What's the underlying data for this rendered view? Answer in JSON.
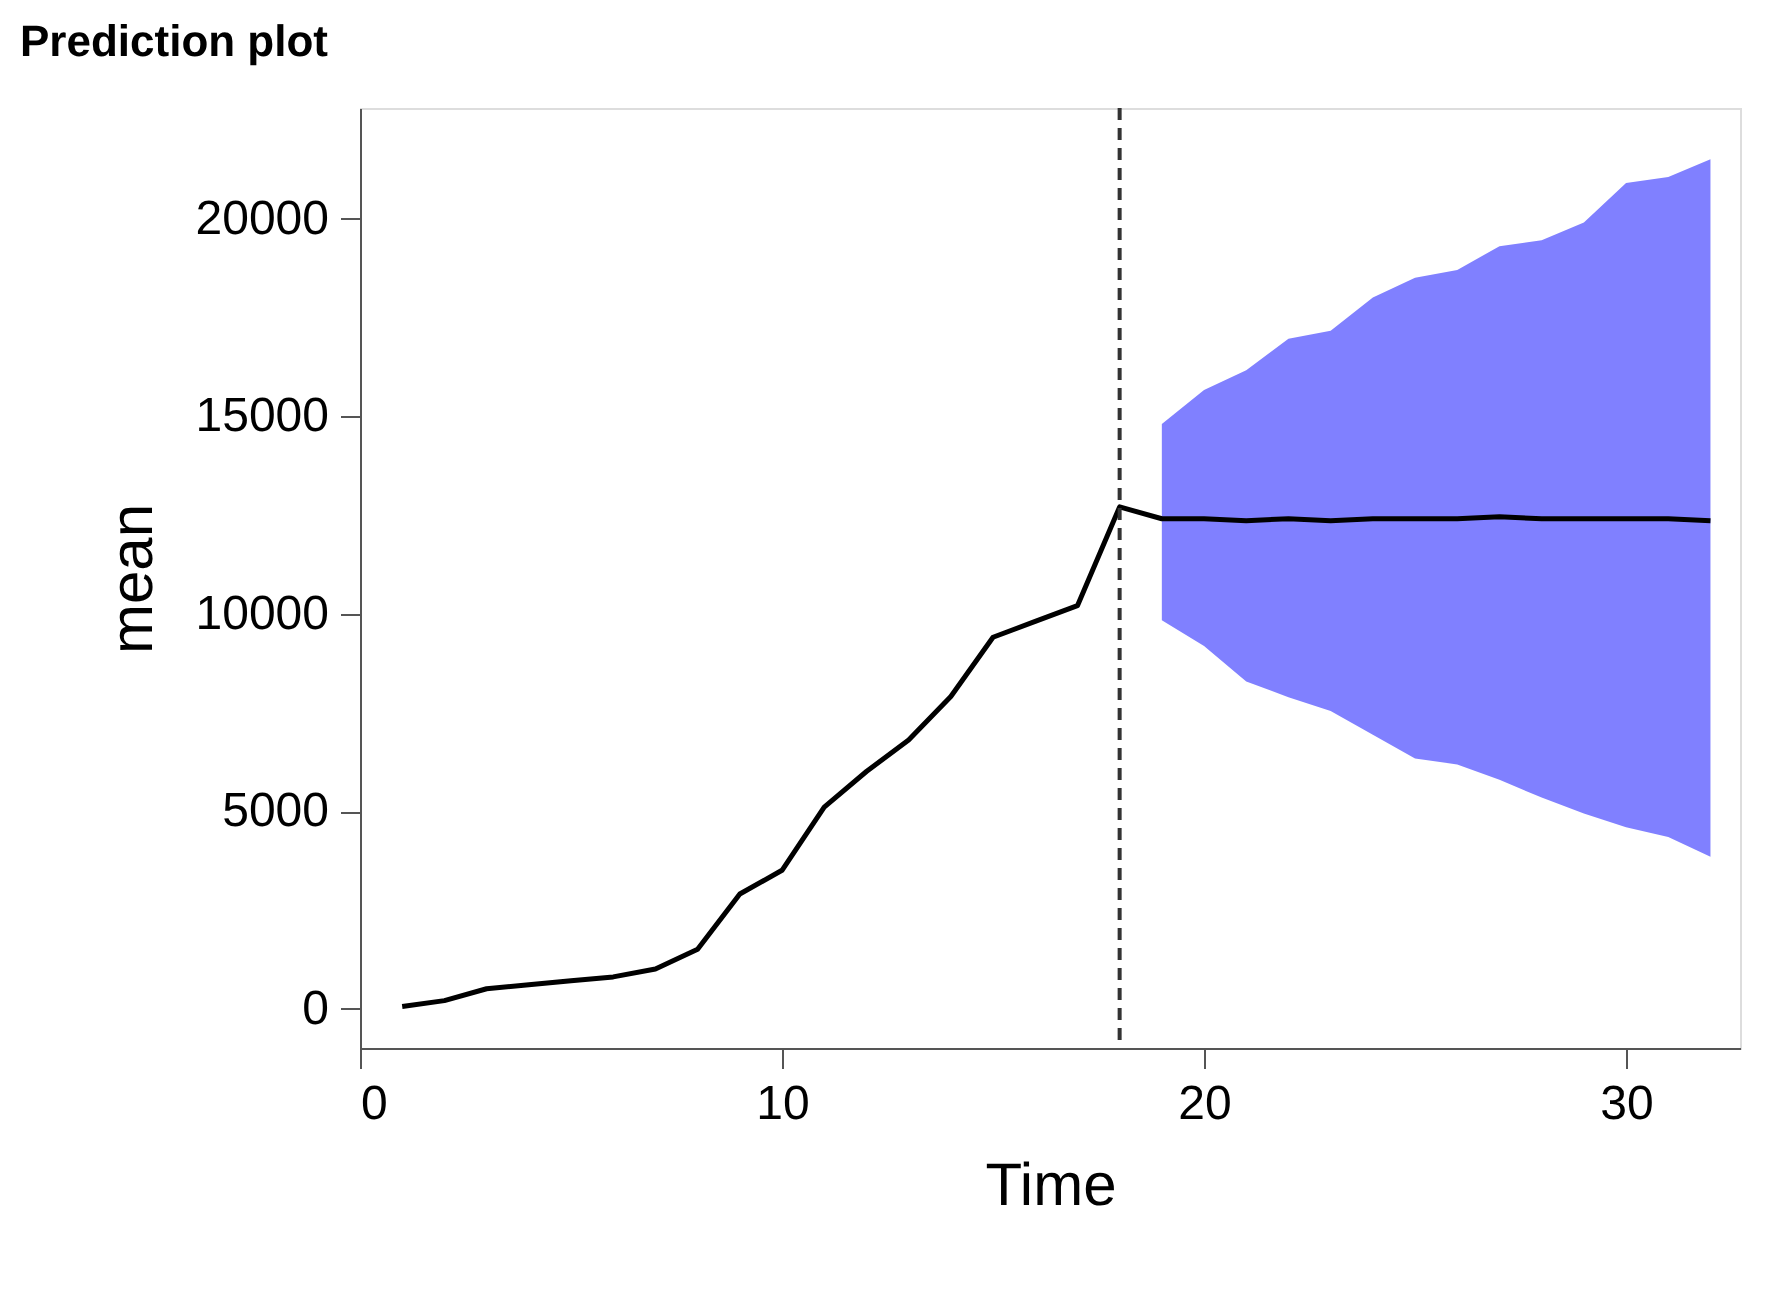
{
  "chart_data": {
    "type": "line",
    "title": "Prediction plot",
    "xlabel": "Time",
    "ylabel": "mean",
    "x": [
      1,
      2,
      3,
      4,
      5,
      6,
      7,
      8,
      9,
      10,
      11,
      12,
      13,
      14,
      15,
      16,
      17,
      18,
      19,
      20,
      21,
      22,
      23,
      24,
      25,
      26,
      27,
      28,
      29,
      30,
      31,
      32
    ],
    "series": [
      {
        "color": "#000000",
        "values": [
          50,
          200,
          500,
          600,
          700,
          800,
          1000,
          1500,
          2900,
          3500,
          5100,
          6000,
          6800,
          7900,
          9400,
          9800,
          10200,
          12700,
          12400,
          12400,
          12350,
          12400,
          12350,
          12400,
          12400,
          12400,
          12450,
          12400,
          12400,
          12400,
          12400,
          12350
        ],
        "lower": [
          null,
          null,
          null,
          null,
          null,
          null,
          null,
          null,
          null,
          null,
          null,
          null,
          null,
          null,
          null,
          null,
          null,
          null,
          9830,
          9180,
          8280,
          7880,
          7530,
          6930,
          6330,
          6180,
          5790,
          5340,
          4940,
          4590,
          4340,
          3840
        ],
        "upper": [
          null,
          null,
          null,
          null,
          null,
          null,
          null,
          null,
          null,
          null,
          null,
          null,
          null,
          null,
          null,
          null,
          null,
          null,
          14800,
          15660,
          16160,
          16960,
          17160,
          18000,
          18500,
          18700,
          19300,
          19450,
          19900,
          20900,
          21050,
          21500
        ]
      }
    ],
    "xlim": [
      0,
      32.7
    ],
    "xticks": [
      0,
      10,
      20,
      30
    ],
    "ylim": [
      -1000,
      22800
    ],
    "yticks": [
      0,
      5000,
      10000,
      15000,
      20000
    ],
    "ref_lines": [
      {
        "axis": "x",
        "value": 18,
        "line_style": "dashed",
        "color": "#333333"
      }
    ],
    "grid": false,
    "line_style": "solid",
    "marker": "none"
  }
}
